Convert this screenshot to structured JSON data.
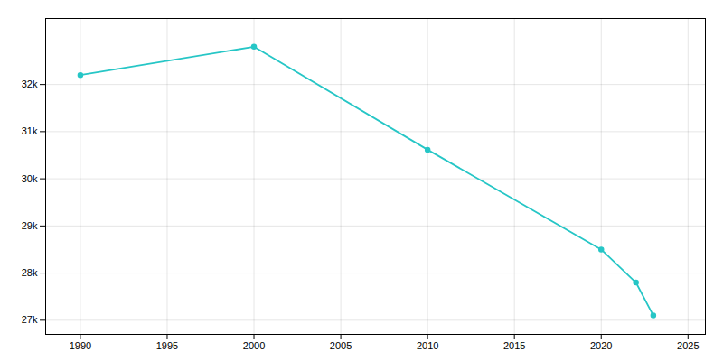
{
  "chart_data": {
    "type": "line",
    "x": [
      1990,
      2000,
      2010,
      2020,
      2022,
      2023
    ],
    "values": [
      32200,
      32800,
      30617,
      28500,
      27800,
      27100
    ],
    "color": "#26c6c6",
    "marker": "circle",
    "xlim": [
      1988,
      2026
    ],
    "ylim": [
      26700,
      33400
    ],
    "xticks": [
      1990,
      1995,
      2000,
      2005,
      2010,
      2015,
      2020,
      2025
    ],
    "yticks": [
      {
        "value": 27000,
        "label": "27k"
      },
      {
        "value": 28000,
        "label": "28k"
      },
      {
        "value": 29000,
        "label": "29k"
      },
      {
        "value": 30000,
        "label": "30k"
      },
      {
        "value": 31000,
        "label": "31k"
      },
      {
        "value": 32000,
        "label": "32k"
      }
    ],
    "grid": true
  }
}
